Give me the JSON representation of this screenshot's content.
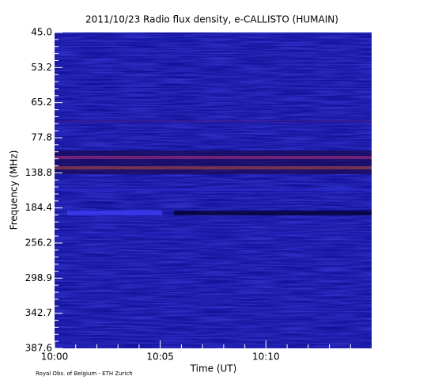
{
  "chart_data": {
    "type": "spectrogram",
    "title": "2011/10/23  Radio flux density, e-CALLISTO (HUMAIN)",
    "xlabel": "Time (UT)",
    "ylabel": "Frequency (MHz)",
    "footer": "Royal Obs. of Belgium - ETH Zurich",
    "xticks": [
      "10:00",
      "10:05",
      "10:10"
    ],
    "yticks": [
      {
        "value": 45,
        "label": "45.0"
      },
      {
        "value": 53.2,
        "label": "53.2"
      },
      {
        "value": 65.2,
        "label": "65.2"
      },
      {
        "value": 77.8,
        "label": "77.8"
      },
      {
        "value": 138.8,
        "label": "138.8"
      },
      {
        "value": 184.4,
        "label": "184.4"
      },
      {
        "value": 256.2,
        "label": "256.2"
      },
      {
        "value": 298.9,
        "label": "298.9"
      },
      {
        "value": 342.7,
        "label": "342.7"
      },
      {
        "value": 387.6,
        "label": "387.6"
      }
    ]
  }
}
